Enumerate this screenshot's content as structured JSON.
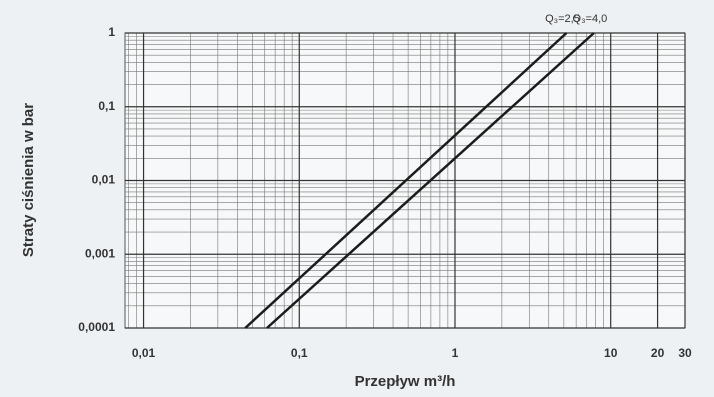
{
  "chart_data": {
    "type": "line",
    "xlabel": "Przepływ m³/h",
    "ylabel": "Straty ciśnienia w bar",
    "log_x": true,
    "log_y": true,
    "grid": true,
    "xlim": [
      0.0076,
      30
    ],
    "ylim": [
      0.0001,
      1
    ],
    "xticks": [
      {
        "value": 0.01,
        "label": "0,01"
      },
      {
        "value": 0.1,
        "label": "0,1"
      },
      1,
      10,
      20,
      30
    ],
    "yticks": [
      {
        "value": 0.0001,
        "label": "0,0001"
      },
      {
        "value": 0.001,
        "label": "0,001"
      },
      {
        "value": 0.01,
        "label": "0,01"
      },
      {
        "value": 0.1,
        "label": "0,1"
      },
      1
    ],
    "series": [
      {
        "name": "Q₃=2,5",
        "color": "#1c1c1c",
        "x": [
          0.045,
          5.2
        ],
        "values": [
          0.0001,
          1
        ]
      },
      {
        "name": "Q₃=4,0",
        "color": "#1c1c1c",
        "x": [
          0.062,
          7.8
        ],
        "values": [
          0.0001,
          1
        ]
      }
    ]
  }
}
